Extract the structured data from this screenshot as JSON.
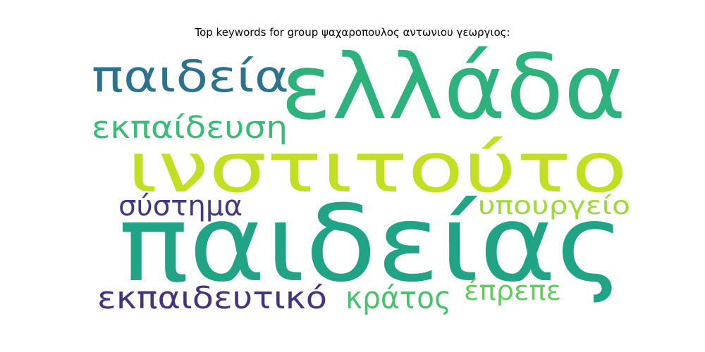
{
  "title": "Top keywords for group ψαχαροπουλος αντωνιου γεωργιος:",
  "words": [
    {
      "text": "ελλάδα",
      "color": "#2db27d"
    },
    {
      "text": "ινστιτούτο",
      "color": "#c2df23"
    },
    {
      "text": "παιδείας",
      "color": "#21a386"
    },
    {
      "text": "παιδεία",
      "color": "#2c728e"
    },
    {
      "text": "εκπαίδευση",
      "color": "#3bbb75"
    },
    {
      "text": "σύστημα",
      "color": "#453781"
    },
    {
      "text": "υπουργείο",
      "color": "#9dd93b"
    },
    {
      "text": "εκπαιδευτικό",
      "color": "#46337e"
    },
    {
      "text": "κράτος",
      "color": "#4ac16d"
    },
    {
      "text": "έπρεπε",
      "color": "#63cb5f"
    }
  ]
}
